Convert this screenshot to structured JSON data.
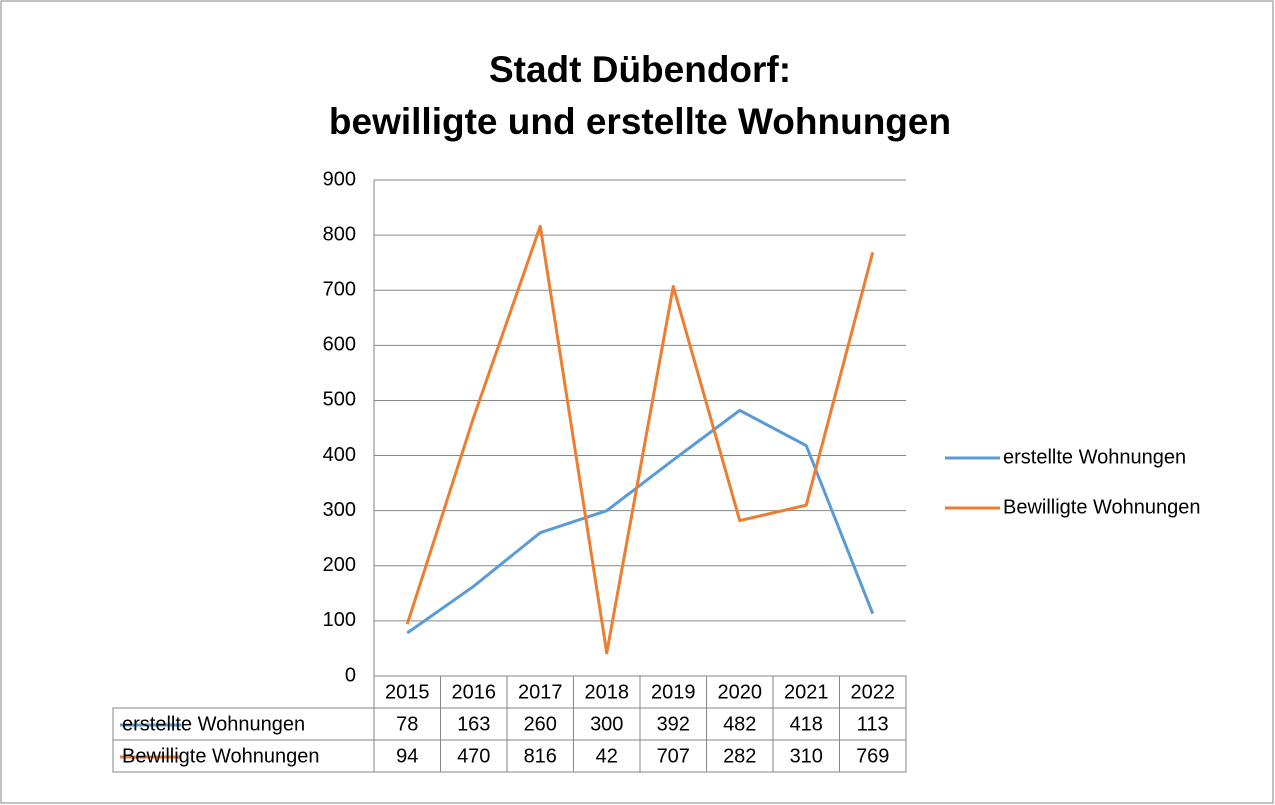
{
  "chart_data": {
    "type": "line",
    "title": [
      "Stadt Dübendorf:",
      "bewilligte und erstellte Wohnungen"
    ],
    "categories": [
      "2015",
      "2016",
      "2017",
      "2018",
      "2019",
      "2020",
      "2021",
      "2022"
    ],
    "series": [
      {
        "name": "erstellte Wohnungen",
        "color": "#5b9bd5",
        "values": [
          78,
          163,
          260,
          300,
          392,
          482,
          418,
          113
        ]
      },
      {
        "name": "Bewilligte Wohnungen",
        "color": "#ed7d31",
        "values": [
          94,
          470,
          816,
          42,
          707,
          282,
          310,
          769
        ]
      }
    ],
    "ylim": [
      0,
      900
    ],
    "yticks": [
      0,
      100,
      200,
      300,
      400,
      500,
      600,
      700,
      800,
      900
    ],
    "grid": true,
    "legend": "right",
    "data_table": true
  }
}
